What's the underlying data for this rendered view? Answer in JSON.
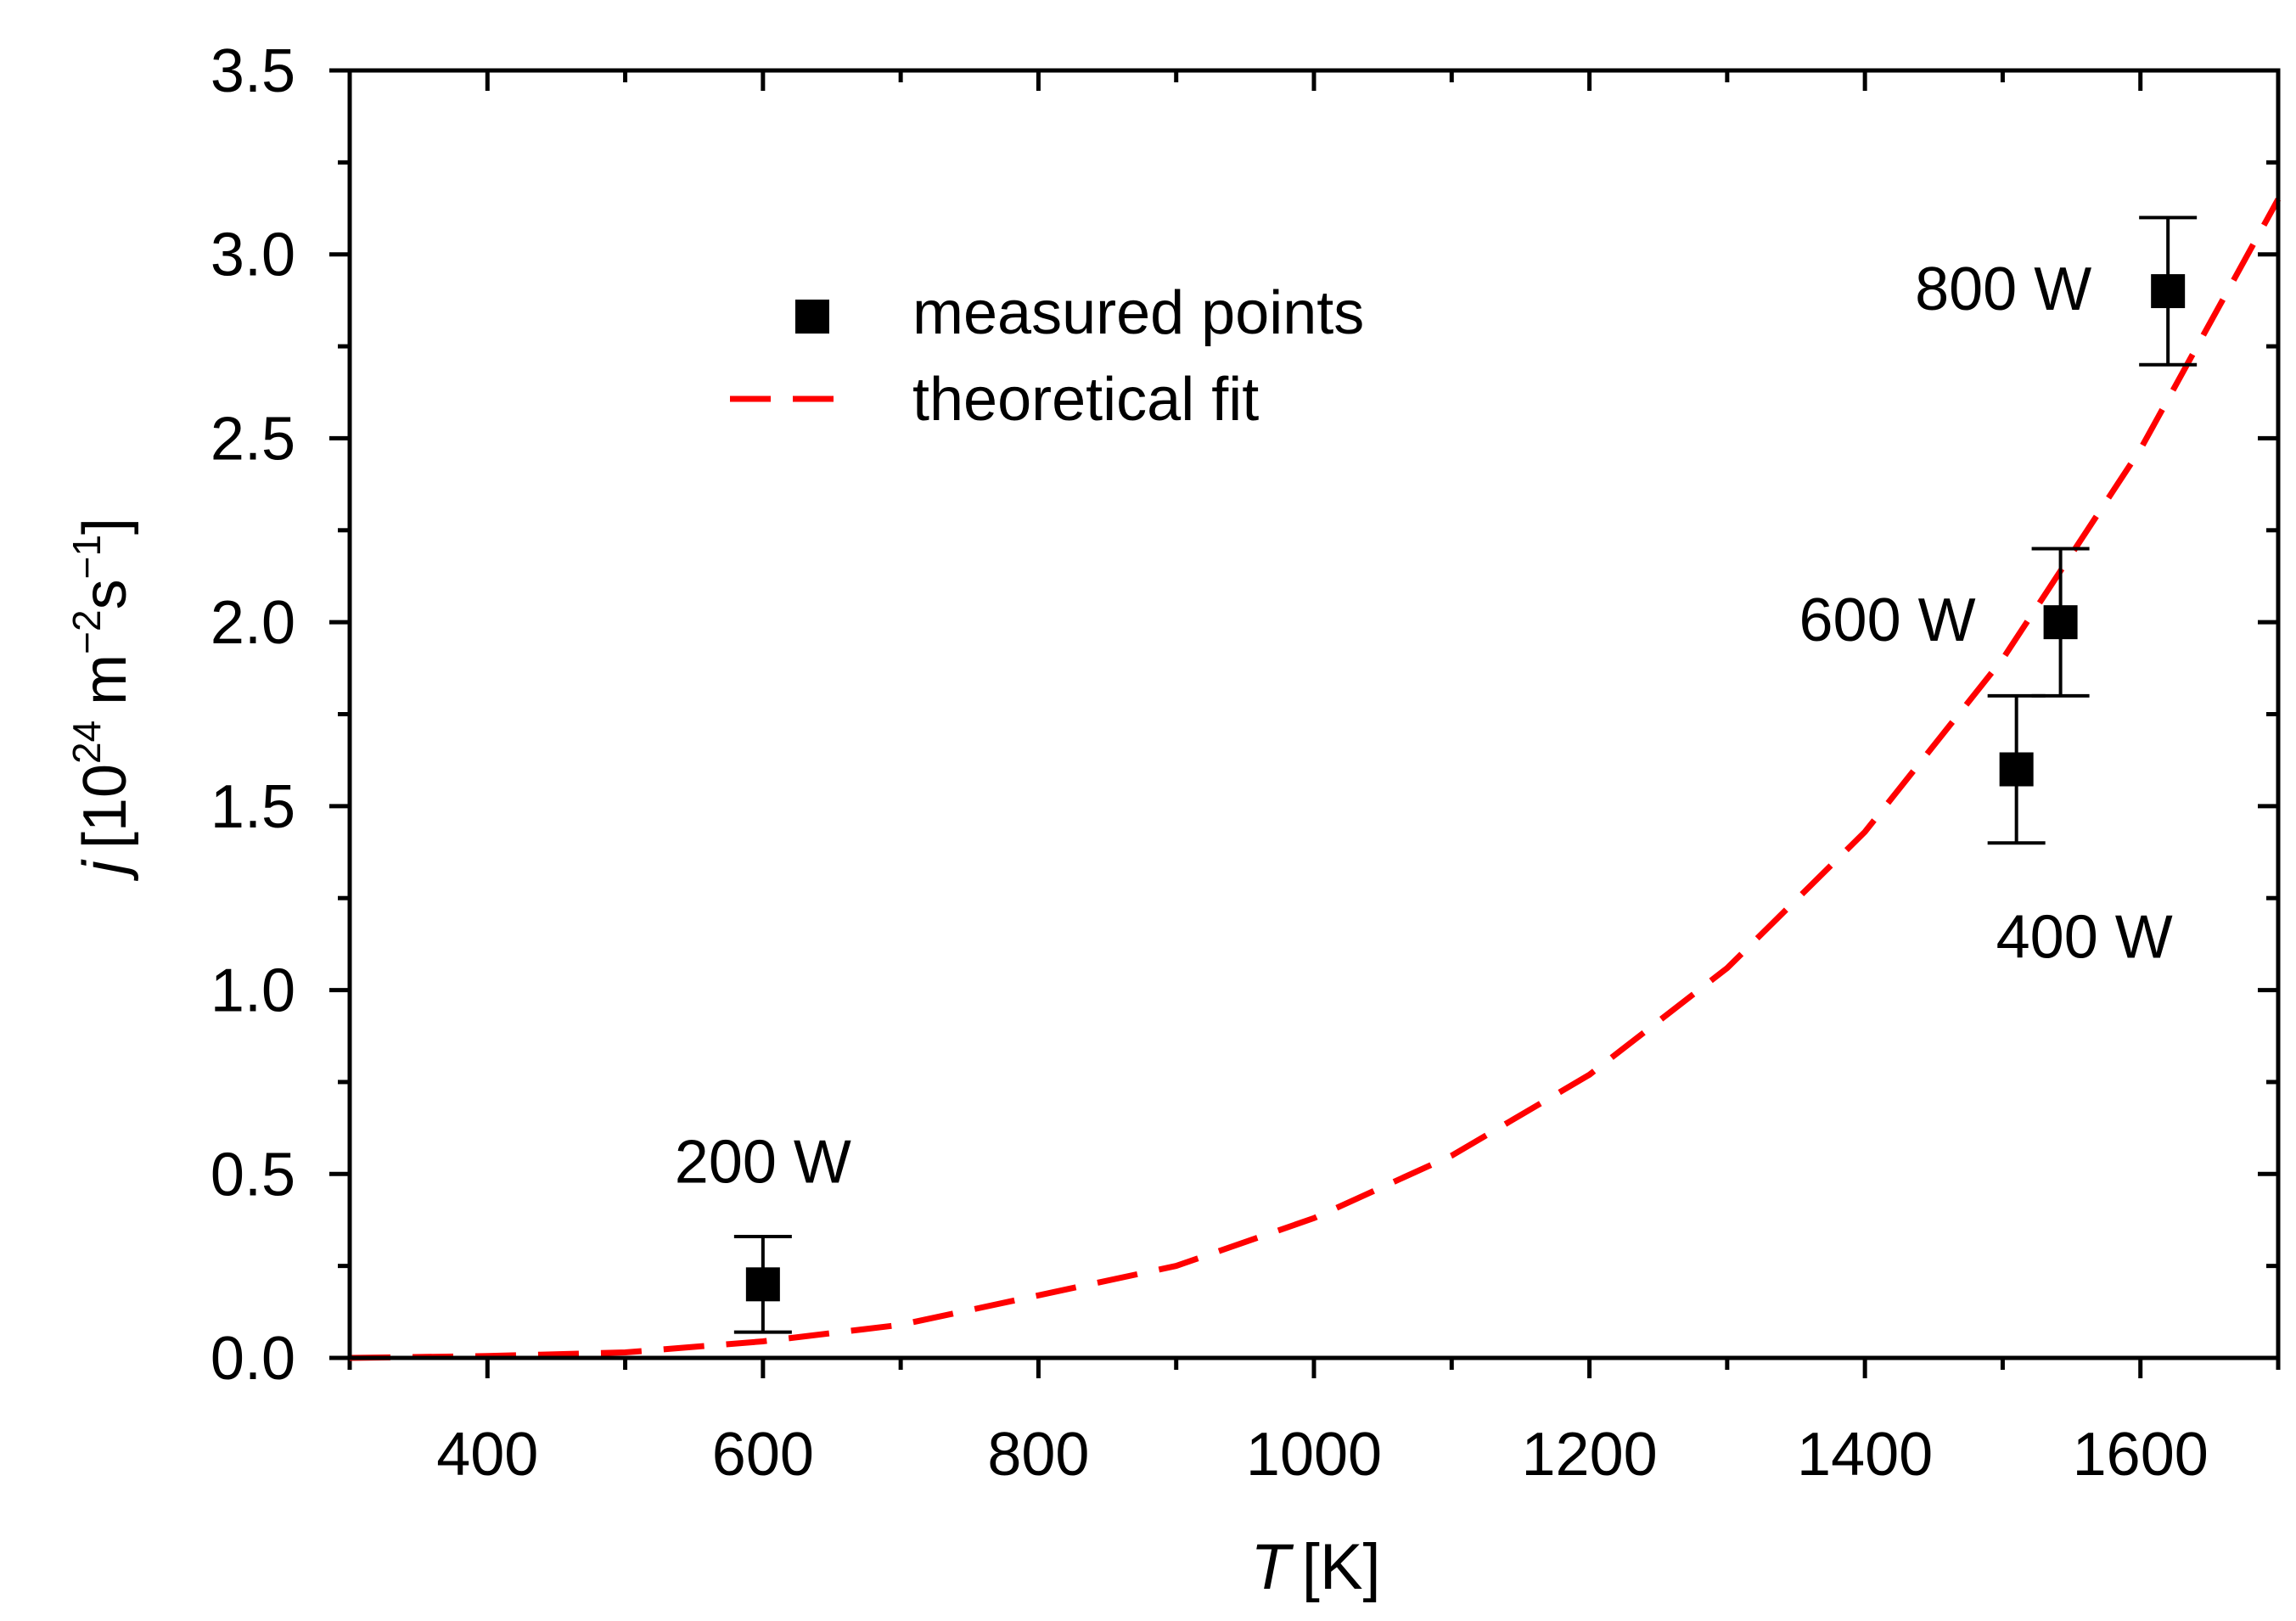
{
  "chart_data": {
    "type": "scatter",
    "xlabel": "T",
    "xlabel_unit": "[K]",
    "ylabel": "j",
    "ylabel_unit": {
      "open": "[10",
      "exp1": "24",
      "m": "m",
      "exp2": "−2",
      "s": "s",
      "exp3": "−1",
      "close": "]"
    },
    "xlim": [
      300,
      1700
    ],
    "ylim": [
      0,
      3.5
    ],
    "x_ticks": [
      400,
      600,
      800,
      1000,
      1200,
      1400,
      1600
    ],
    "y_ticks": [
      "0.0",
      "0.5",
      "1.0",
      "1.5",
      "2.0",
      "2.5",
      "3.0",
      "3.5"
    ],
    "legend_position": "top-left",
    "legend": {
      "measured": "measured points",
      "fit": "theoretical fit"
    },
    "series": [
      {
        "name": "measured points",
        "kind": "points-with-error-bars",
        "color": "#000000",
        "points": [
          {
            "x": 600,
            "y": 0.2,
            "err_low": 0.07,
            "err_high": 0.33,
            "label": "200 W"
          },
          {
            "x": 1510,
            "y": 1.6,
            "err_low": 1.4,
            "err_high": 1.8,
            "label": "400 W"
          },
          {
            "x": 1542,
            "y": 2.0,
            "err_low": 1.8,
            "err_high": 2.2,
            "label": "600 W"
          },
          {
            "x": 1620,
            "y": 2.9,
            "err_low": 2.7,
            "err_high": 3.1,
            "label": "800 W"
          }
        ]
      },
      {
        "name": "theoretical fit",
        "kind": "dashed-line",
        "color": "#ff0000",
        "x": [
          300,
          400,
          500,
          600,
          700,
          800,
          900,
          1000,
          1100,
          1200,
          1300,
          1400,
          1500,
          1600,
          1700
        ],
        "y": [
          0.0,
          0.005,
          0.015,
          0.045,
          0.09,
          0.17,
          0.25,
          0.38,
          0.55,
          0.77,
          1.06,
          1.43,
          1.9,
          2.47,
          3.15
        ]
      }
    ]
  }
}
